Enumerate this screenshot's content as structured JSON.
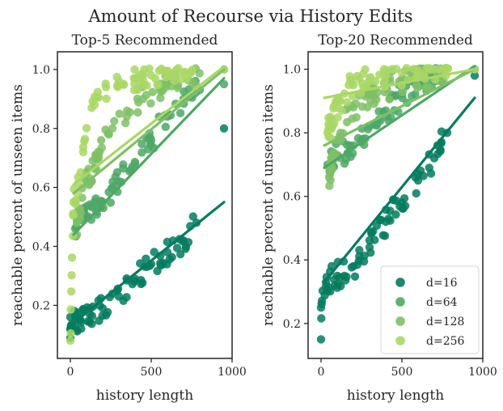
{
  "suptitle": "Amount of Recourse via History Edits",
  "colors": {
    "d=16": "#037b5e",
    "d=64": "#4ea766",
    "d=128": "#7fbf66",
    "d=256": "#a9d765",
    "axis": "#262626"
  },
  "chart_data": [
    {
      "type": "scatter",
      "title": "Top-5 Recommended",
      "xlabel": "history length",
      "ylabel": "reachable percent of unseen items",
      "xlim": [
        -80,
        1000
      ],
      "ylim": [
        0.02,
        1.06
      ],
      "xticks": [
        0,
        500,
        1000
      ],
      "yticks": [
        0.2,
        0.4,
        0.6,
        0.8,
        1.0
      ],
      "legend": null,
      "series": [
        {
          "name": "d=16",
          "trend": [
            [
              20,
              0.14
            ],
            [
              950,
              0.55
            ]
          ],
          "anchors": [
            [
              0,
              0.09
            ],
            [
              0,
              0.12
            ],
            [
              0,
              0.16
            ],
            [
              60,
              0.15
            ],
            [
              120,
              0.17
            ],
            [
              200,
              0.19
            ],
            [
              300,
              0.23
            ],
            [
              400,
              0.29
            ],
            [
              500,
              0.34
            ],
            [
              600,
              0.38
            ],
            [
              700,
              0.42
            ],
            [
              780,
              0.48
            ],
            [
              950,
              0.8
            ]
          ]
        },
        {
          "name": "d=64",
          "trend": [
            [
              20,
              0.44
            ],
            [
              950,
              0.97
            ]
          ],
          "anchors": [
            [
              30,
              0.46
            ],
            [
              100,
              0.5
            ],
            [
              200,
              0.55
            ],
            [
              300,
              0.62
            ],
            [
              400,
              0.68
            ],
            [
              500,
              0.76
            ],
            [
              600,
              0.84
            ],
            [
              700,
              0.9
            ],
            [
              800,
              0.93
            ],
            [
              950,
              0.95
            ]
          ]
        },
        {
          "name": "d=128",
          "trend": [
            [
              20,
              0.58
            ],
            [
              950,
              1.0
            ]
          ],
          "anchors": [
            [
              40,
              0.48
            ],
            [
              100,
              0.62
            ],
            [
              180,
              0.72
            ],
            [
              260,
              0.8
            ],
            [
              350,
              0.86
            ],
            [
              450,
              0.9
            ],
            [
              550,
              0.94
            ],
            [
              650,
              0.97
            ],
            [
              950,
              1.0
            ]
          ]
        },
        {
          "name": "d=256",
          "trend": [
            [
              20,
              0.61
            ],
            [
              950,
              1.01
            ]
          ],
          "anchors": [
            [
              0,
              0.08
            ],
            [
              20,
              0.55
            ],
            [
              80,
              0.72
            ],
            [
              150,
              0.88
            ],
            [
              220,
              0.94
            ],
            [
              300,
              0.96
            ],
            [
              400,
              0.97
            ],
            [
              500,
              0.98
            ],
            [
              600,
              0.985
            ],
            [
              700,
              0.99
            ],
            [
              950,
              1.0
            ]
          ]
        }
      ]
    },
    {
      "type": "scatter",
      "title": "Top-20 Recommended",
      "xlabel": "history length",
      "ylabel": "reachable percent of unseen items",
      "xlim": [
        -80,
        1000
      ],
      "ylim": [
        0.09,
        1.055
      ],
      "xticks": [
        0,
        500,
        1000
      ],
      "yticks": [
        0.2,
        0.4,
        0.6,
        0.8,
        1.0
      ],
      "legend": "lower-right",
      "series": [
        {
          "name": "d=16",
          "trend": [
            [
              20,
              0.33
            ],
            [
              950,
              0.91
            ]
          ],
          "anchors": [
            [
              0,
              0.15
            ],
            [
              0,
              0.25
            ],
            [
              30,
              0.33
            ],
            [
              100,
              0.35
            ],
            [
              200,
              0.38
            ],
            [
              300,
              0.44
            ],
            [
              400,
              0.52
            ],
            [
              500,
              0.58
            ],
            [
              600,
              0.65
            ],
            [
              700,
              0.72
            ],
            [
              780,
              0.8
            ],
            [
              950,
              0.98
            ]
          ]
        },
        {
          "name": "d=64",
          "trend": [
            [
              20,
              0.69
            ],
            [
              950,
              1.01
            ]
          ],
          "anchors": [
            [
              40,
              0.7
            ],
            [
              100,
              0.73
            ],
            [
              200,
              0.76
            ],
            [
              300,
              0.82
            ],
            [
              400,
              0.87
            ],
            [
              500,
              0.92
            ],
            [
              600,
              0.96
            ],
            [
              700,
              0.98
            ],
            [
              950,
              1.0
            ]
          ]
        },
        {
          "name": "d=128",
          "trend": [
            [
              20,
              0.76
            ],
            [
              950,
              1.0
            ]
          ],
          "anchors": [
            [
              50,
              0.66
            ],
            [
              120,
              0.8
            ],
            [
              200,
              0.88
            ],
            [
              300,
              0.92
            ],
            [
              400,
              0.94
            ],
            [
              500,
              0.97
            ],
            [
              600,
              0.98
            ],
            [
              950,
              1.0
            ]
          ]
        },
        {
          "name": "d=256",
          "trend": [
            [
              20,
              0.91
            ],
            [
              950,
              1.0
            ]
          ],
          "anchors": [
            [
              40,
              0.8
            ],
            [
              120,
              0.9
            ],
            [
              200,
              0.95
            ],
            [
              300,
              0.97
            ],
            [
              400,
              0.98
            ],
            [
              500,
              0.99
            ],
            [
              600,
              0.995
            ],
            [
              700,
              1.0
            ],
            [
              950,
              1.0
            ]
          ]
        }
      ]
    }
  ]
}
